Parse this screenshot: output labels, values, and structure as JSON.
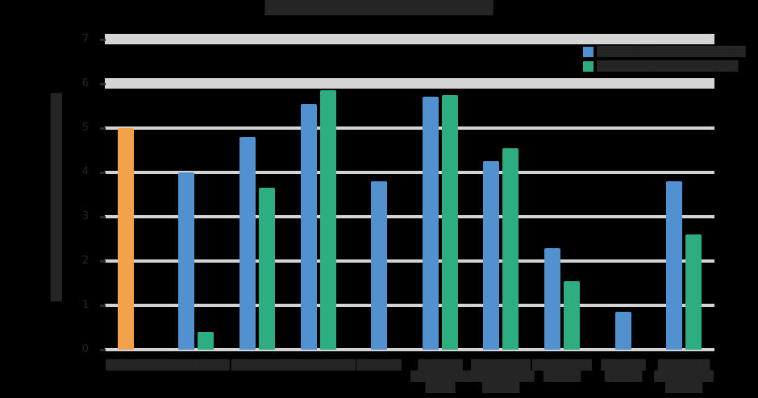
{
  "_comment": "All text in the source screenshot is dark-on-black and illegible; block glyphs reproduce the visible dark text blocks at their measured sizes.",
  "chart_data": {
    "type": "bar",
    "title": "███████████████████████",
    "ylabel": "████████████████████████████",
    "xlabel": "",
    "ylim": [
      0,
      7
    ],
    "yticks": [
      "0",
      "1",
      "2",
      "3",
      "4",
      "5",
      "6",
      "7"
    ],
    "band_gridlines": [
      6,
      7
    ],
    "grid": true,
    "background_color": "#000000",
    "gridline_color": "#d4d4d4",
    "text_color": "#252525",
    "legend": {
      "position": "top-right",
      "items": [
        {
          "label": "████████████████████",
          "color": "#5291d0"
        },
        {
          "label": "███████████████████",
          "color": "#2dae81"
        }
      ]
    },
    "series_colors": {
      "blue": "#5291d0",
      "green": "#2dae81",
      "orange": "#f1a24a"
    },
    "categories": [
      {
        "label_lines": [
          "████████"
        ],
        "bars": [
          {
            "series": "orange",
            "value": 5.0,
            "align": "left"
          }
        ]
      },
      {
        "label_lines": [
          "█████████"
        ],
        "bars": [
          {
            "series": "blue",
            "value": 4.0
          },
          {
            "series": "green",
            "value": 0.4
          }
        ]
      },
      {
        "label_lines": [
          "███████"
        ],
        "bars": [
          {
            "series": "blue",
            "value": 4.8
          },
          {
            "series": "green",
            "value": 3.65
          }
        ]
      },
      {
        "label_lines": [
          "██████████"
        ],
        "bars": [
          {
            "series": "blue",
            "value": 5.55
          },
          {
            "series": "green",
            "value": 5.85
          }
        ]
      },
      {
        "label_lines": [
          "██████"
        ],
        "bars": [
          {
            "series": "blue",
            "value": 3.8,
            "align": "center"
          }
        ]
      },
      {
        "label_lines": [
          "██████",
          "████████",
          "████"
        ],
        "bars": [
          {
            "series": "blue",
            "value": 5.7
          },
          {
            "series": "green",
            "value": 5.75
          }
        ]
      },
      {
        "label_lines": [
          "████████",
          "█████████",
          "█████"
        ],
        "bars": [
          {
            "series": "blue",
            "value": 4.25
          },
          {
            "series": "green",
            "value": 4.55
          }
        ]
      },
      {
        "label_lines": [
          "████████",
          "█████"
        ],
        "bars": [
          {
            "series": "blue",
            "value": 2.3
          },
          {
            "series": "green",
            "value": 1.55
          }
        ]
      },
      {
        "label_lines": [
          "██████",
          "█████"
        ],
        "bars": [
          {
            "series": "blue",
            "value": 0.85,
            "align": "center"
          }
        ]
      },
      {
        "label_lines": [
          "███████",
          "████████",
          "█████"
        ],
        "bars": [
          {
            "series": "blue",
            "value": 3.8
          },
          {
            "series": "green",
            "value": 2.6
          }
        ]
      }
    ]
  }
}
